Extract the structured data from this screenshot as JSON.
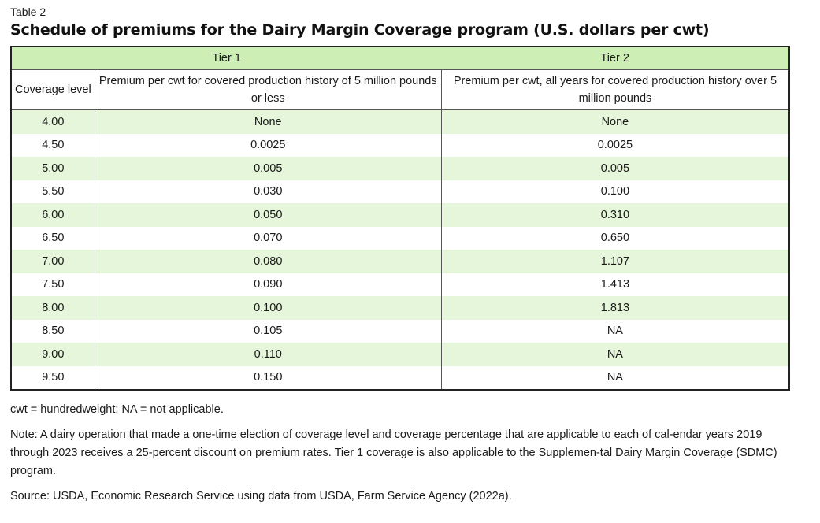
{
  "table_label": "Table 2",
  "table_title": "Schedule of premiums for the Dairy Margin Coverage program (U.S. dollars per cwt)",
  "header": {
    "tier1": "Tier 1",
    "tier2": "Tier 2",
    "coverage_level": "Coverage level",
    "tier1_desc": "Premium per cwt for covered production history of 5 million pounds or less",
    "tier2_desc": "Premium per cwt, all years for covered production history over 5 million pounds"
  },
  "rows": [
    {
      "level": "4.00",
      "tier1": "None",
      "tier2": "None"
    },
    {
      "level": "4.50",
      "tier1": "0.0025",
      "tier2": "0.0025"
    },
    {
      "level": "5.00",
      "tier1": "0.005",
      "tier2": "0.005"
    },
    {
      "level": "5.50",
      "tier1": "0.030",
      "tier2": "0.100"
    },
    {
      "level": "6.00",
      "tier1": "0.050",
      "tier2": "0.310"
    },
    {
      "level": "6.50",
      "tier1": "0.070",
      "tier2": "0.650"
    },
    {
      "level": "7.00",
      "tier1": "0.080",
      "tier2": "1.107"
    },
    {
      "level": "7.50",
      "tier1": "0.090",
      "tier2": "1.413"
    },
    {
      "level": "8.00",
      "tier1": "0.100",
      "tier2": "1.813"
    },
    {
      "level": "8.50",
      "tier1": "0.105",
      "tier2": "NA"
    },
    {
      "level": "9.00",
      "tier1": "0.110",
      "tier2": "NA"
    },
    {
      "level": "9.50",
      "tier1": "0.150",
      "tier2": "NA"
    }
  ],
  "notes": {
    "abbrev": "cwt = hundredweight; NA = not applicable.",
    "note": "Note: A dairy operation that made a one-time election of coverage level and coverage percentage that are applicable to each of cal-endar years 2019 through 2023 receives a 25-percent discount on premium rates. Tier 1 coverage is also applicable to the Supplemen-tal Dairy Margin Coverage (SDMC) program.",
    "source": "Source: USDA, Economic Research Service using data from USDA, Farm Service Agency (2022a)."
  },
  "colors": {
    "header_fill": "#cdeeb4",
    "stripe_fill": "#e6f6da",
    "border": "#222222"
  }
}
